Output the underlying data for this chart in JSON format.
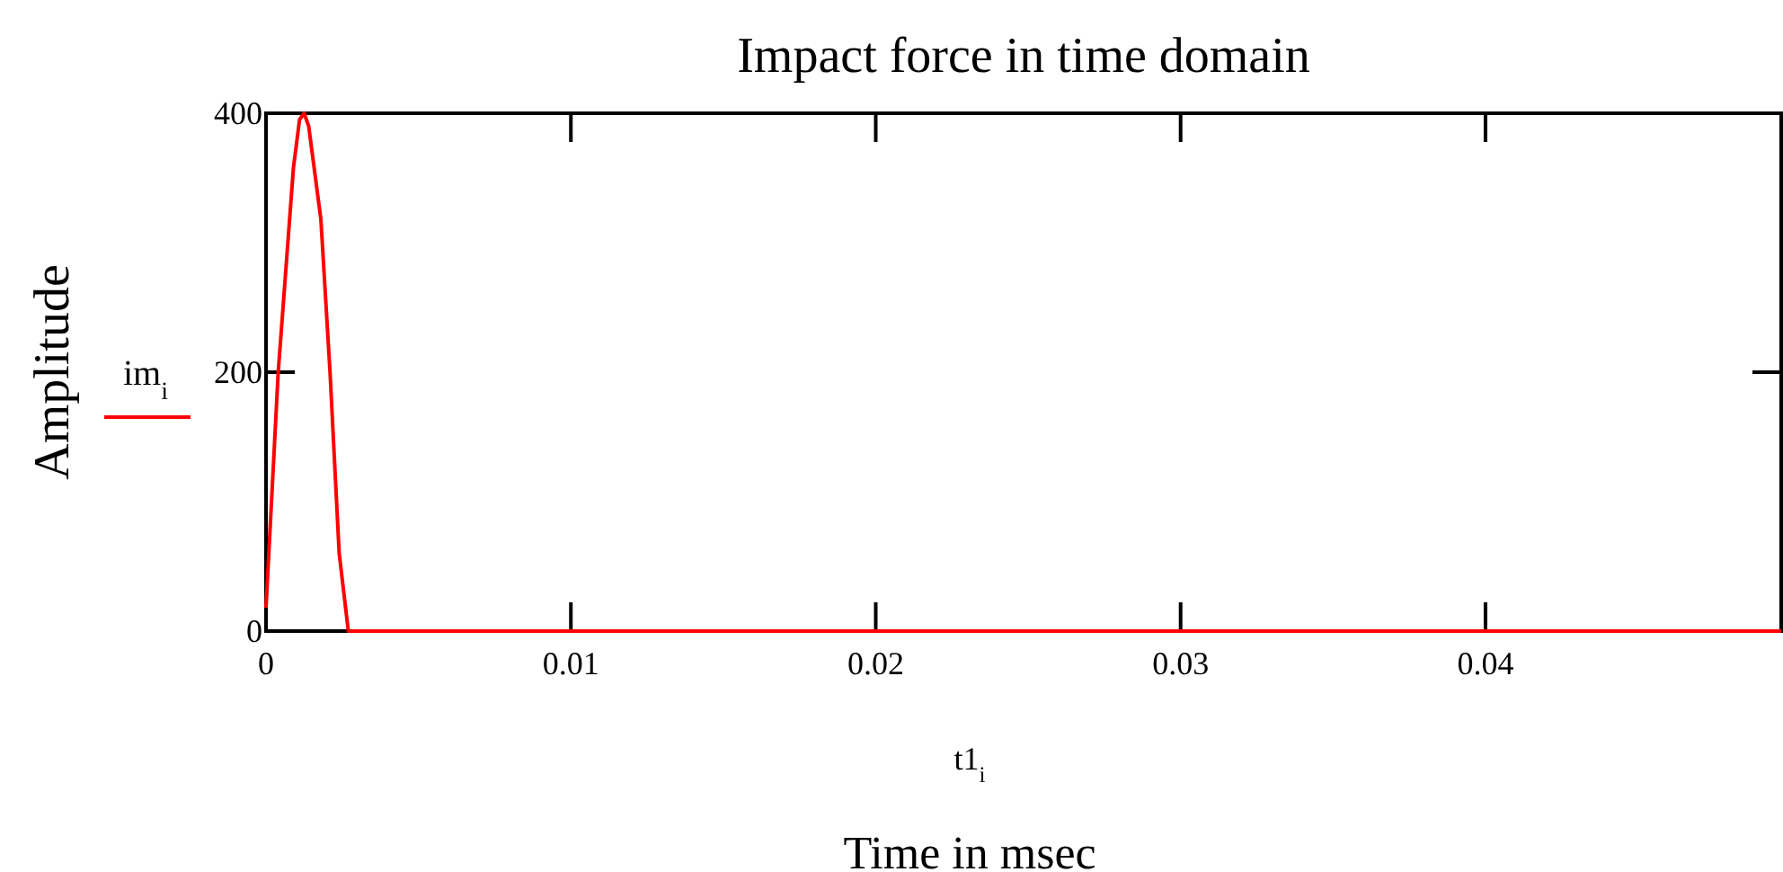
{
  "chart_data": {
    "type": "line",
    "title": "Impact force in time domain",
    "xlabel": "t1$_{i}$",
    "ylabel": "Amplitude",
    "annotations": [
      "Time in msec"
    ],
    "x": [
      0,
      0.0004,
      0.0009,
      0.0011,
      0.00125,
      0.0014,
      0.0018,
      0.0021,
      0.0024,
      0.0027,
      0.0497
    ],
    "series": [
      {
        "name": "im$_{i}$",
        "color": "#ff0000",
        "values": [
          18,
          200,
          358,
          395,
          400,
          390,
          318,
          200,
          60,
          0,
          0
        ]
      }
    ],
    "xlim": [
      0,
      0.0497
    ],
    "xticks": [
      0,
      0.01,
      0.02,
      0.03,
      0.04
    ],
    "ylim": [
      0,
      400
    ],
    "yticks": [
      0,
      200,
      400
    ],
    "legend": "left",
    "grid": false,
    "marker": "none",
    "line_style": "solid"
  }
}
